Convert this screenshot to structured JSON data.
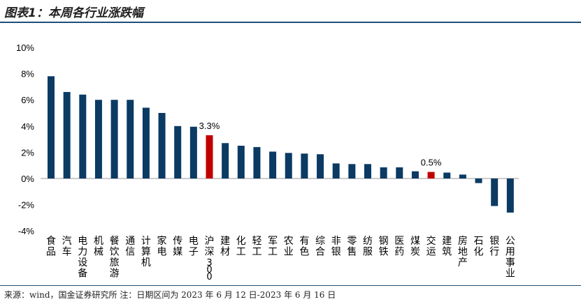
{
  "header": {
    "title": "图表1：本周各行业涨跌幅"
  },
  "footer": {
    "source": "来源：wind，国金证券研究所    注：日期区间为 2023 年 6 月 12 日-2023 年 6 月 16 日"
  },
  "chart_data": {
    "type": "bar",
    "title": "",
    "xlabel": "",
    "ylabel": "",
    "ylim": [
      -4,
      10
    ],
    "yticks": [
      -4,
      -2,
      0,
      2,
      4,
      6,
      8,
      10
    ],
    "ytick_format": "%",
    "grid": false,
    "colors": {
      "default": "#0b3a63",
      "highlight": "#c00000"
    },
    "categories": [
      "食品",
      "汽车",
      "电力设备",
      "机械",
      "餐饮旅游",
      "通信",
      "计算机",
      "家电",
      "传媒",
      "电子",
      "沪深300",
      "建材",
      "化工",
      "轻工",
      "军工",
      "农业",
      "有色",
      "综合",
      "非银",
      "零售",
      "纺服",
      "钢铁",
      "医药",
      "煤炭",
      "交运",
      "建筑",
      "房地产",
      "石化",
      "银行",
      "公用事业"
    ],
    "values": [
      7.8,
      6.6,
      6.4,
      6.0,
      6.0,
      6.0,
      5.4,
      5.0,
      4.0,
      3.95,
      3.3,
      2.7,
      2.5,
      2.4,
      2.05,
      1.95,
      1.9,
      1.85,
      1.15,
      1.1,
      1.1,
      0.85,
      0.85,
      0.55,
      0.5,
      0.45,
      0.3,
      -0.35,
      -2.1,
      -2.6
    ],
    "highlight": [
      "沪深300",
      "交运"
    ],
    "data_labels": [
      {
        "category": "沪深300",
        "text": "3.3%"
      },
      {
        "category": "交运",
        "text": "0.5%"
      }
    ]
  }
}
